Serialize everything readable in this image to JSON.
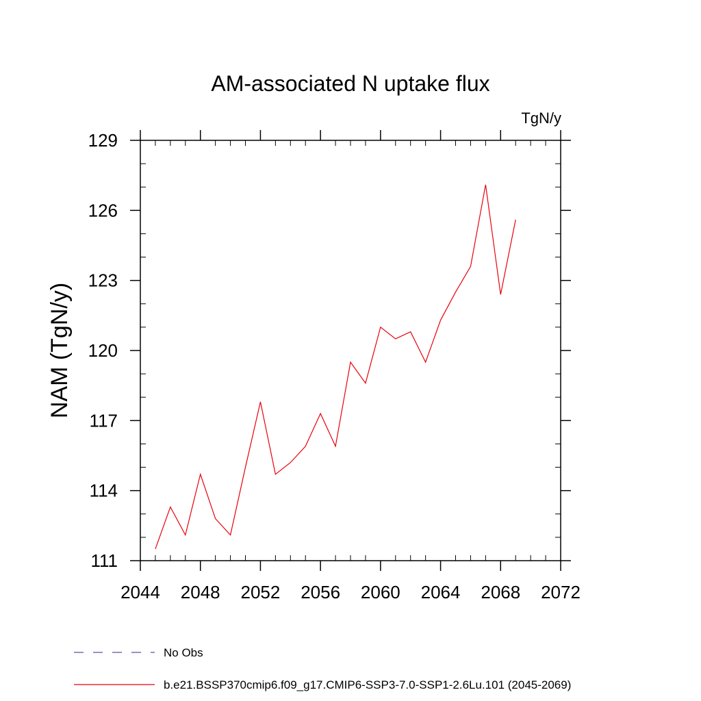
{
  "chart_data": {
    "type": "line",
    "title": "AM-associated N uptake flux",
    "units_label": "TgN/y",
    "ylabel": "NAM  (TgN/y)",
    "xlabel": "",
    "xlim": [
      2044,
      2072
    ],
    "ylim": [
      111,
      129
    ],
    "x_ticks": [
      2044,
      2048,
      2052,
      2056,
      2060,
      2064,
      2068,
      2072
    ],
    "y_ticks": [
      111,
      114,
      117,
      120,
      123,
      126,
      129
    ],
    "x_minor_step": 1,
    "y_minor_step": 1,
    "grid": false,
    "legend_position": "bottom",
    "series": [
      {
        "name": "No Obs",
        "color": "#5b4fa8",
        "style": "dashed",
        "x": [],
        "y": []
      },
      {
        "name": "b.e21.BSSP370cmip6.f09_g17.CMIP6-SSP3-7.0-SSP1-2.6Lu.101 (2045-2069)",
        "color": "#e8000b",
        "style": "solid",
        "x": [
          2045,
          2046,
          2047,
          2048,
          2049,
          2050,
          2051,
          2052,
          2053,
          2054,
          2055,
          2056,
          2057,
          2058,
          2059,
          2060,
          2061,
          2062,
          2063,
          2064,
          2065,
          2066,
          2067,
          2068,
          2069
        ],
        "y": [
          111.5,
          113.3,
          112.1,
          114.7,
          112.8,
          112.1,
          115.0,
          117.8,
          114.7,
          115.2,
          115.9,
          117.3,
          115.9,
          119.5,
          118.6,
          121.0,
          120.5,
          120.8,
          119.5,
          121.3,
          122.5,
          123.6,
          127.1,
          122.4,
          125.6
        ]
      }
    ]
  }
}
